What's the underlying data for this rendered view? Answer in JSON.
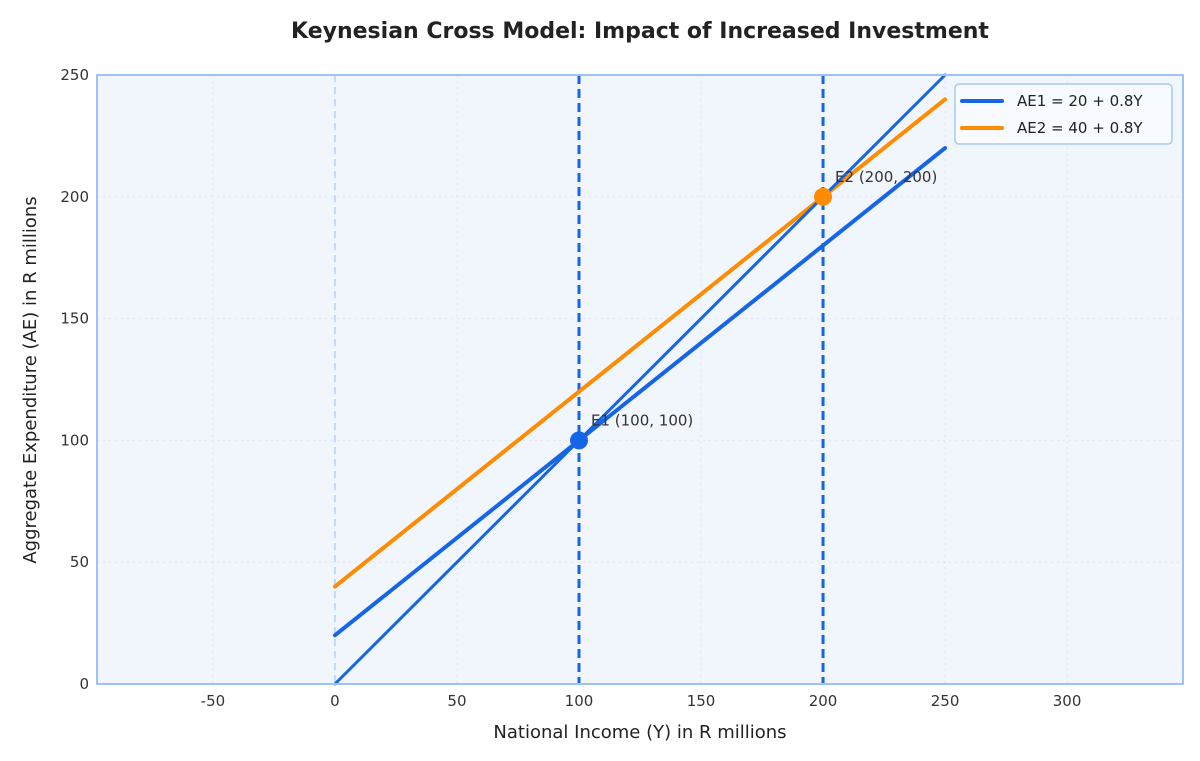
{
  "chart_data": {
    "type": "line",
    "title": "Keynesian Cross Model: Impact of Increased Investment",
    "xlabel": "National Income (Y) in R millions",
    "ylabel": "Aggregate Expenditure (AE) in R millions",
    "xlim": [
      -97.5,
      347.5
    ],
    "ylim": [
      0,
      250
    ],
    "xticks": [
      -50,
      0,
      50,
      100,
      150,
      200,
      250,
      300
    ],
    "yticks": [
      0,
      50,
      100,
      150,
      200,
      250
    ],
    "grid": true,
    "legend_position": "top-right",
    "series": [
      {
        "name": "AE1 = 20 + 0.8Y",
        "color": "#1565e6",
        "x": [
          0,
          250
        ],
        "y": [
          20,
          220
        ],
        "in_legend": true
      },
      {
        "name": "AE2 = 40 + 0.8Y",
        "color": "#ff8c00",
        "x": [
          0,
          250
        ],
        "y": [
          40,
          240
        ],
        "in_legend": true
      },
      {
        "color": "#1565e6",
        "x": [
          0,
          250
        ],
        "y": [
          0,
          250
        ],
        "in_legend": false
      }
    ],
    "vertical_lines": [
      {
        "x": 0,
        "color": "#c5d9f7",
        "style": "dashed"
      },
      {
        "x": 100,
        "color": "#1565e6",
        "style": "dashed"
      },
      {
        "x": 200,
        "color": "#1565e6",
        "style": "dashed"
      }
    ],
    "points": [
      {
        "label": "E1 (100, 100)",
        "x": 100,
        "y": 100,
        "color": "#1565e6"
      },
      {
        "label": "E2 (200, 200)",
        "x": 200,
        "y": 200,
        "color": "#ff8c00"
      }
    ],
    "colors": {
      "plot_background": "#f1f6fd",
      "frame": "#9ec2f5"
    }
  }
}
